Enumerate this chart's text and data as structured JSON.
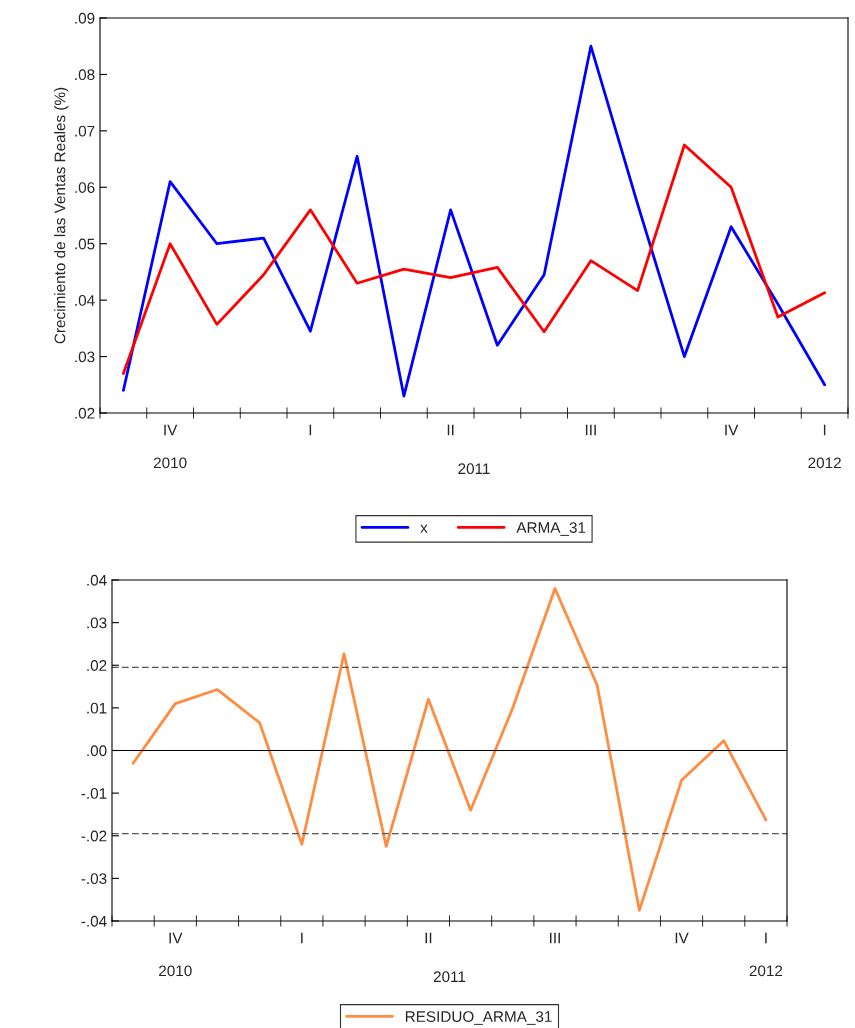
{
  "chart_data": [
    {
      "type": "line",
      "ylabel": "Crecimiento de las Ventas Reales (%)",
      "categories": [
        null,
        "IV\n\n2010",
        null,
        null,
        "I",
        null,
        null,
        "II",
        null,
        null,
        "III",
        null,
        null,
        "IV",
        null,
        "I\n\n2012"
      ],
      "series": [
        {
          "name": "x",
          "color": "#0000ff",
          "values": [
            0.024,
            0.061,
            0.05,
            0.051,
            0.0345,
            0.0655,
            0.023,
            0.056,
            0.032,
            0.0445,
            0.085,
            0.057,
            0.03,
            0.053,
            0.0393,
            0.025
          ]
        },
        {
          "name": "ARMA_31",
          "color": "#ff0000",
          "values": [
            0.027,
            0.05,
            0.0357,
            0.0445,
            0.056,
            0.043,
            0.0455,
            0.044,
            0.0458,
            0.0344,
            0.047,
            0.0417,
            0.0675,
            0.06,
            0.037,
            0.0413
          ]
        }
      ],
      "ylim": [
        0.02,
        0.09
      ],
      "yticks": [
        {
          "value": 0.02,
          "label": ".02"
        },
        {
          "value": 0.03,
          "label": ".03"
        },
        {
          "value": 0.04,
          "label": ".04"
        },
        {
          "value": 0.05,
          "label": ".05"
        },
        {
          "value": 0.06,
          "label": ".06"
        },
        {
          "value": 0.07,
          "label": ".07"
        },
        {
          "value": 0.08,
          "label": ".08"
        },
        {
          "value": 0.09,
          "label": ".09"
        }
      ],
      "annotations": [
        "2011"
      ],
      "legend": "bottom",
      "grid": false,
      "line_style": "solid"
    },
    {
      "type": "line",
      "categories": [
        null,
        "IV\n\n2010",
        null,
        null,
        "I",
        null,
        null,
        "II",
        null,
        null,
        "III",
        null,
        null,
        "IV",
        null,
        "I\n\n2012"
      ],
      "series": [
        {
          "name": "RESIDUO_ARMA_31",
          "color": "#ff8c40",
          "values": [
            -0.003,
            0.011,
            0.0143,
            0.0065,
            -0.022,
            0.0227,
            -0.0225,
            0.012,
            -0.014,
            0.01,
            0.038,
            0.0153,
            -0.0375,
            -0.007,
            0.0023,
            -0.0163
          ]
        }
      ],
      "ylim": [
        -0.04,
        0.04
      ],
      "yticks": [
        {
          "value": -0.04,
          "label": "-.04"
        },
        {
          "value": -0.03,
          "label": "-.03"
        },
        {
          "value": -0.02,
          "label": "-.02"
        },
        {
          "value": -0.01,
          "label": "-.01"
        },
        {
          "value": 0.0,
          "label": ".00"
        },
        {
          "value": 0.01,
          "label": ".01"
        },
        {
          "value": 0.02,
          "label": ".02"
        },
        {
          "value": 0.03,
          "label": ".03"
        },
        {
          "value": 0.04,
          "label": ".04"
        }
      ],
      "ref_lines": [
        {
          "axis": "y",
          "value": 0.0,
          "color": "#000000",
          "line_style": "solid"
        },
        {
          "axis": "y",
          "value": 0.0195,
          "color": "#555555",
          "line_style": "dashed"
        },
        {
          "axis": "y",
          "value": -0.0195,
          "color": "#555555",
          "line_style": "dashed"
        }
      ],
      "annotations": [
        "2011"
      ],
      "legend": "bottom",
      "grid": false,
      "line_style": "solid"
    }
  ]
}
